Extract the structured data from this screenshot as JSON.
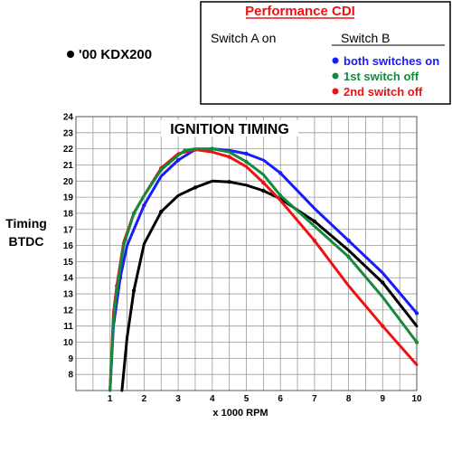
{
  "colors": {
    "black": "#000000",
    "blue": "#1a1aff",
    "green": "#148a3c",
    "red": "#ee1111",
    "brown": "#b04020",
    "grid": "#999999"
  },
  "chart_data": {
    "type": "line",
    "title": "IGNITION TIMING",
    "subtitle": "'00 KDX200",
    "xlabel": "x 1000 RPM",
    "ylabel": "Timing BTDC",
    "xlim": [
      0,
      10
    ],
    "ylim": [
      7,
      24
    ],
    "xticks": [
      1,
      2,
      3,
      4,
      5,
      6,
      7,
      8,
      9,
      10
    ],
    "yticks": [
      8,
      9,
      10,
      11,
      12,
      13,
      14,
      15,
      16,
      17,
      18,
      19,
      20,
      21,
      22,
      23,
      24
    ],
    "grid": true,
    "legend": {
      "heading": "Performance CDI",
      "switch_a": "Switch A on",
      "switch_b": "Switch B",
      "placement": "top-right"
    },
    "series": [
      {
        "name": "'00 KDX200",
        "color": "#000000",
        "x": [
          1.35,
          1.5,
          1.7,
          2.0,
          2.5,
          3.0,
          3.5,
          4.0,
          4.5,
          5.0,
          5.5,
          6.0,
          7.0,
          8.0,
          9.0,
          10.0
        ],
        "y": [
          7.0,
          10.3,
          13.2,
          16.1,
          18.1,
          19.1,
          19.6,
          20.0,
          19.95,
          19.75,
          19.4,
          18.9,
          17.5,
          15.7,
          13.7,
          11.0
        ]
      },
      {
        "name": "both switches on",
        "color": "#1a1aff",
        "x": [
          1.0,
          1.1,
          1.3,
          1.5,
          2.0,
          2.5,
          3.0,
          3.5,
          4.0,
          4.5,
          5.0,
          5.5,
          6.0,
          7.0,
          8.0,
          9.0,
          10.0
        ],
        "y": [
          7.0,
          11.0,
          14.0,
          16.0,
          18.5,
          20.3,
          21.3,
          21.95,
          22.0,
          21.9,
          21.7,
          21.3,
          20.5,
          18.3,
          16.3,
          14.3,
          11.8
        ]
      },
      {
        "name": "1st switch off",
        "color": "#148a3c",
        "x": [
          1.0,
          1.1,
          1.2,
          1.4,
          1.7,
          2.0,
          2.5,
          3.0,
          3.2,
          3.5,
          4.0,
          4.5,
          5.0,
          5.5,
          6.0,
          7.0,
          8.0,
          9.0,
          10.0
        ],
        "y": [
          7.0,
          11.4,
          13.2,
          16.0,
          18.0,
          19.1,
          20.7,
          21.6,
          21.9,
          22.0,
          22.0,
          21.8,
          21.2,
          20.4,
          19.1,
          17.2,
          15.3,
          12.8,
          10.0
        ]
      },
      {
        "name": "2nd switch off",
        "color": "#ee1111",
        "x": [
          1.0,
          1.1,
          1.2,
          1.4,
          1.7,
          2.0,
          2.5,
          3.0,
          3.5,
          4.0,
          4.5,
          5.0,
          5.5,
          6.0,
          7.0,
          8.0,
          9.0,
          10.0
        ],
        "y": [
          7.0,
          11.8,
          13.5,
          16.2,
          18.0,
          19.1,
          20.8,
          21.7,
          21.95,
          21.8,
          21.5,
          20.9,
          19.9,
          18.8,
          16.3,
          13.5,
          11.0,
          8.6
        ]
      }
    ]
  }
}
